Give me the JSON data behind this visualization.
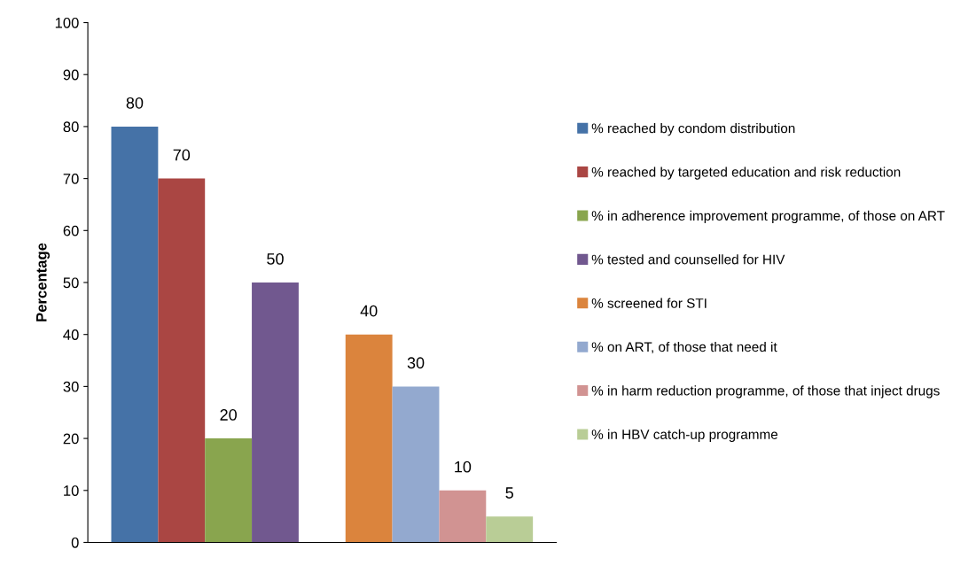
{
  "chart_data": {
    "type": "bar",
    "ylabel": "Percentage",
    "categories": [
      null,
      null
    ],
    "series": [
      {
        "name": "% reached by condom distribution",
        "color": "#4572a7",
        "values": [
          80,
          null
        ]
      },
      {
        "name": "% reached by targeted education and risk reduction",
        "color": "#aa4643",
        "values": [
          70,
          null
        ]
      },
      {
        "name": "% in adherence improvement programme, of those on ART",
        "color": "#89a54e",
        "values": [
          20,
          null
        ]
      },
      {
        "name": "% tested and counselled for HIV",
        "color": "#71588f",
        "values": [
          50,
          null
        ]
      },
      {
        "name": "% screened for STI",
        "color": "#db843d",
        "values": [
          null,
          40
        ]
      },
      {
        "name": "% on ART, of those that need it",
        "color": "#93a9cf",
        "values": [
          null,
          30
        ]
      },
      {
        "name": "% in harm reduction programme, of those that inject drugs",
        "color": "#d19392",
        "values": [
          null,
          10
        ]
      },
      {
        "name": "% in HBV catch-up programme",
        "color": "#b9cd96",
        "values": [
          null,
          5
        ]
      }
    ],
    "ylim": [
      0,
      100
    ],
    "yticks": [
      0,
      10,
      20,
      30,
      40,
      50,
      60,
      70,
      80,
      90,
      100
    ],
    "data_labels": true,
    "legend": "right",
    "grid": false
  }
}
